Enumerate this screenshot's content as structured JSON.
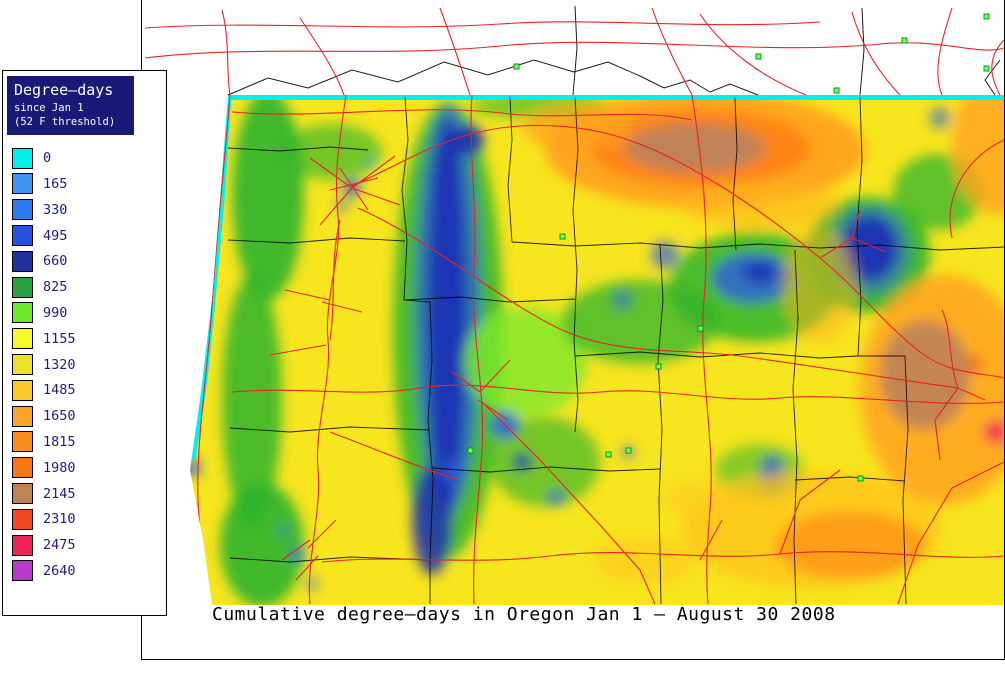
{
  "legend": {
    "title": "Degree–days",
    "subtitle1": "since Jan 1",
    "subtitle2": "(52 F threshold)",
    "entries": [
      {
        "value": "0",
        "color": "#00F0F0"
      },
      {
        "value": "165",
        "color": "#3C96F0"
      },
      {
        "value": "330",
        "color": "#2E78F0"
      },
      {
        "value": "495",
        "color": "#2850E0"
      },
      {
        "value": "660",
        "color": "#2030A0"
      },
      {
        "value": "825",
        "color": "#2EA044"
      },
      {
        "value": "990",
        "color": "#70E628"
      },
      {
        "value": "1155",
        "color": "#FAFA28"
      },
      {
        "value": "1320",
        "color": "#EEE028"
      },
      {
        "value": "1485",
        "color": "#FAC828"
      },
      {
        "value": "1650",
        "color": "#FAA428"
      },
      {
        "value": "1815",
        "color": "#FA8C1E"
      },
      {
        "value": "1980",
        "color": "#F57814"
      },
      {
        "value": "2145",
        "color": "#BE8255"
      },
      {
        "value": "2310",
        "color": "#F04A1E"
      },
      {
        "value": "2475",
        "color": "#EE2356"
      },
      {
        "value": "2640",
        "color": "#B43CC8"
      }
    ]
  },
  "caption": "Cumulative degree–days in Oregon Jan 1 – August 30 2008",
  "chart_data": {
    "type": "heatmap",
    "title": "Cumulative degree–days in Oregon Jan 1 – August 30 2008",
    "region": "Oregon",
    "variable": "Cumulative degree-days since Jan 1",
    "threshold": "52 F",
    "period": "Jan 1 – August 30 2008",
    "levels": [
      0,
      165,
      330,
      495,
      660,
      825,
      990,
      1155,
      1320,
      1485,
      1650,
      1815,
      1980,
      2145,
      2310,
      2475,
      2640
    ],
    "legend_position": "left",
    "overlays": [
      "highways (red)",
      "county boundaries (black)",
      "station markers (green squares)"
    ]
  }
}
